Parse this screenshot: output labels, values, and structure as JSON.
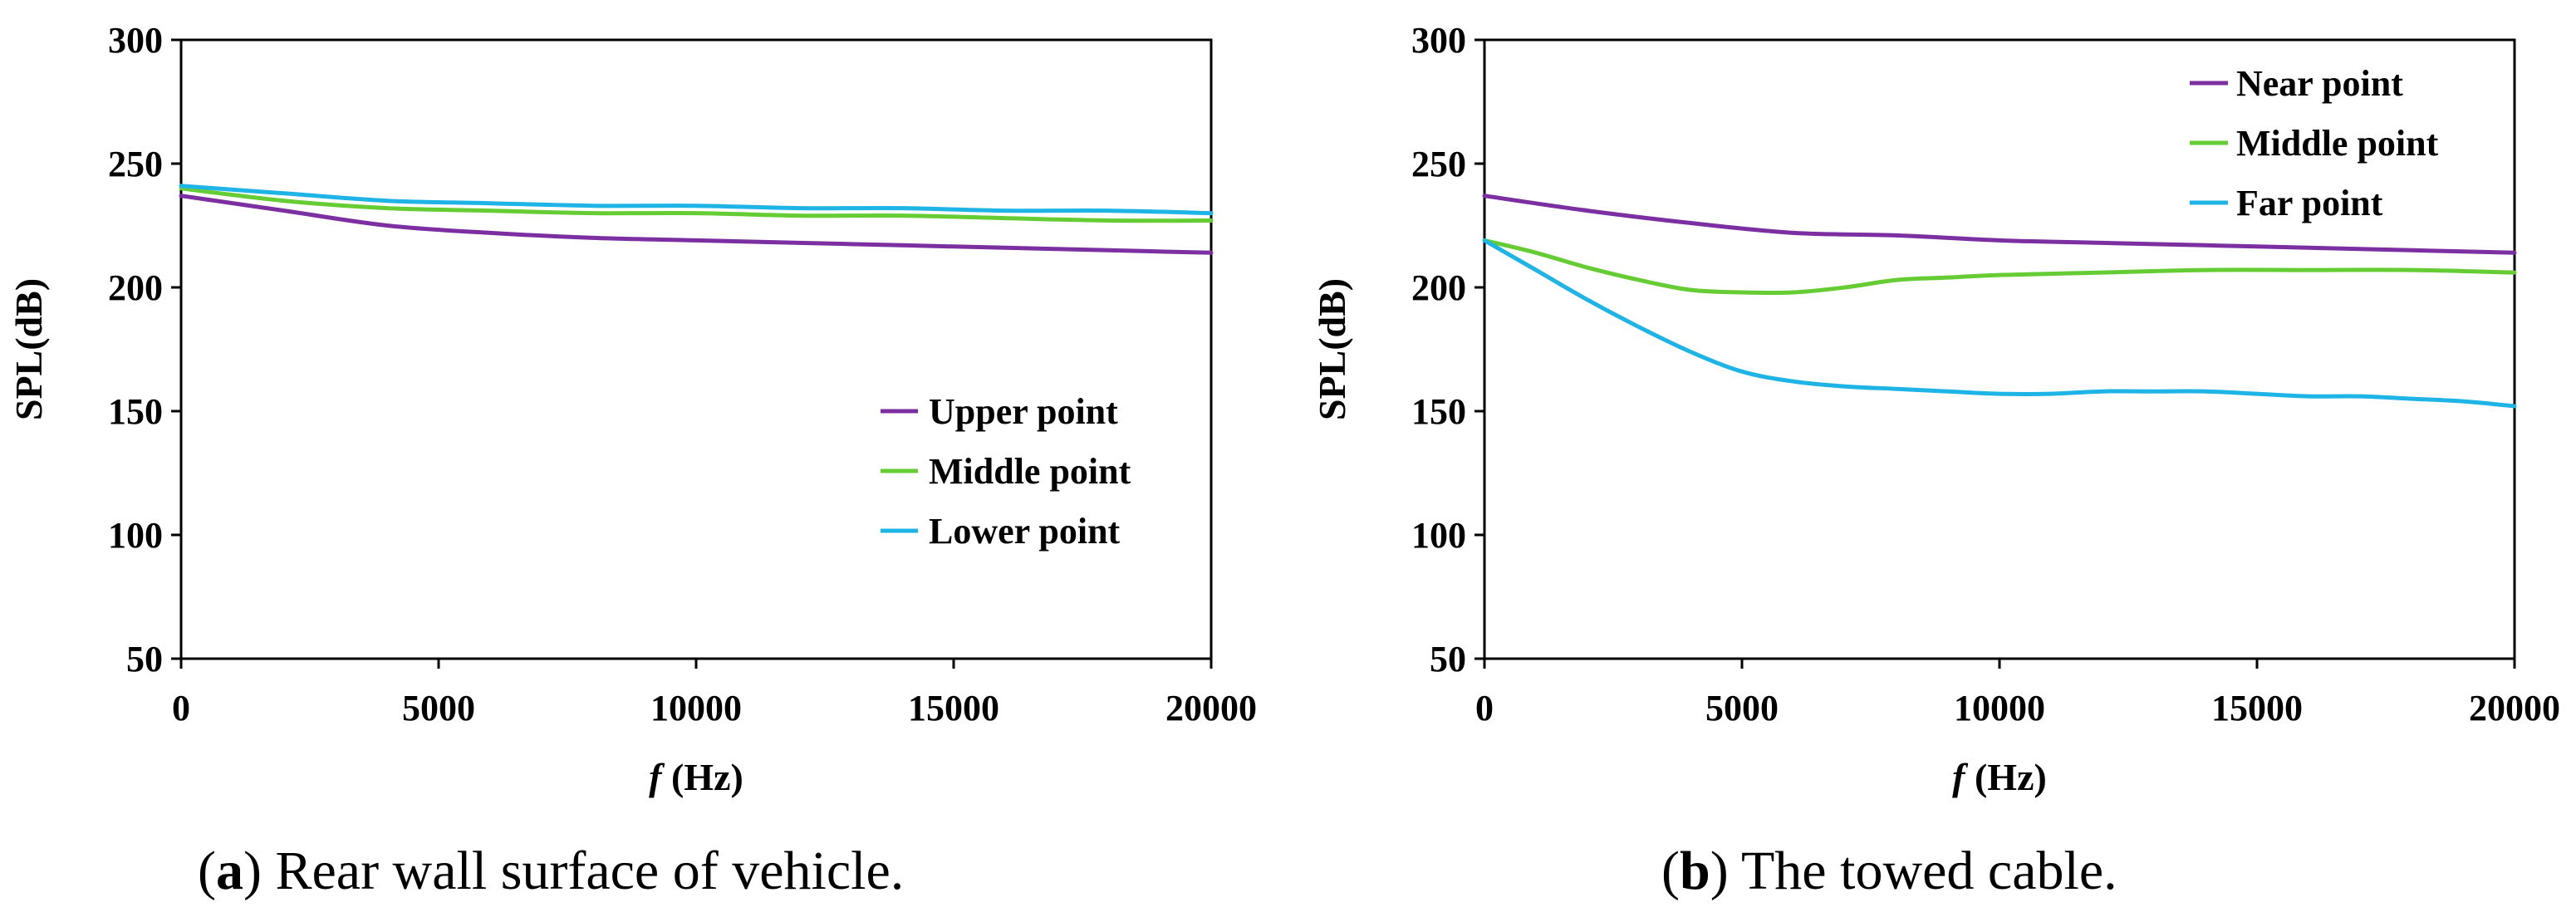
{
  "chart_data": [
    {
      "type": "line",
      "xlabel_italic": "f",
      "xlabel_rest": " (Hz)",
      "ylabel": "SPL(dB)",
      "xlim": [
        0,
        20000
      ],
      "ylim": [
        50,
        300
      ],
      "xticks": [
        0,
        5000,
        10000,
        15000,
        20000
      ],
      "yticks": [
        50,
        100,
        150,
        200,
        250,
        300
      ],
      "grid": false,
      "legend_position": "lower-right",
      "caption_letter": "a",
      "caption_text": " Rear wall surface of vehicle.",
      "series": [
        {
          "name": "Upper point",
          "color": "#7b2fa0",
          "x": [
            0,
            2000,
            4000,
            6000,
            8000,
            10000,
            12000,
            14000,
            16000,
            18000,
            20000
          ],
          "y": [
            237,
            231,
            225,
            222,
            220,
            219,
            218,
            217,
            216,
            215,
            214
          ]
        },
        {
          "name": "Middle point",
          "color": "#66cc33",
          "x": [
            0,
            2000,
            4000,
            6000,
            8000,
            10000,
            12000,
            14000,
            16000,
            18000,
            20000
          ],
          "y": [
            240,
            235,
            232,
            231,
            230,
            230,
            229,
            229,
            228,
            227,
            227
          ]
        },
        {
          "name": "Lower point",
          "color": "#1eb4e6",
          "x": [
            0,
            2000,
            4000,
            6000,
            8000,
            10000,
            12000,
            14000,
            16000,
            18000,
            20000
          ],
          "y": [
            241,
            238,
            235,
            234,
            233,
            233,
            232,
            232,
            231,
            231,
            230
          ]
        }
      ]
    },
    {
      "type": "line",
      "xlabel_italic": "f",
      "xlabel_rest": " (Hz)",
      "ylabel": "SPL(dB)",
      "xlim": [
        0,
        20000
      ],
      "ylim": [
        50,
        300
      ],
      "xticks": [
        0,
        5000,
        10000,
        15000,
        20000
      ],
      "yticks": [
        50,
        100,
        150,
        200,
        250,
        300
      ],
      "grid": false,
      "legend_position": "top-right",
      "caption_letter": "b",
      "caption_text": " The towed cable.",
      "series": [
        {
          "name": "Near point",
          "color": "#7b2fa0",
          "x": [
            0,
            2000,
            4000,
            6000,
            8000,
            10000,
            12000,
            14000,
            16000,
            18000,
            20000
          ],
          "y": [
            237,
            231,
            226,
            222,
            221,
            219,
            218,
            217,
            216,
            215,
            214
          ]
        },
        {
          "name": "Middle point",
          "color": "#66cc33",
          "x": [
            0,
            1000,
            2000,
            3000,
            4000,
            5000,
            6000,
            7000,
            8000,
            9000,
            10000,
            12000,
            14000,
            16000,
            18000,
            20000
          ],
          "y": [
            219,
            214,
            208,
            203,
            199,
            198,
            198,
            200,
            203,
            204,
            205,
            206,
            207,
            207,
            207,
            206
          ]
        },
        {
          "name": "Far point",
          "color": "#1eb4e6",
          "x": [
            0,
            1000,
            2000,
            3000,
            4000,
            5000,
            6000,
            7000,
            8000,
            9000,
            10000,
            11000,
            12000,
            13000,
            14000,
            15000,
            16000,
            17000,
            18000,
            19000,
            20000
          ],
          "y": [
            219,
            207,
            195,
            184,
            174,
            166,
            162,
            160,
            159,
            158,
            157,
            157,
            158,
            158,
            158,
            157,
            156,
            156,
            155,
            154,
            152
          ]
        }
      ]
    }
  ]
}
